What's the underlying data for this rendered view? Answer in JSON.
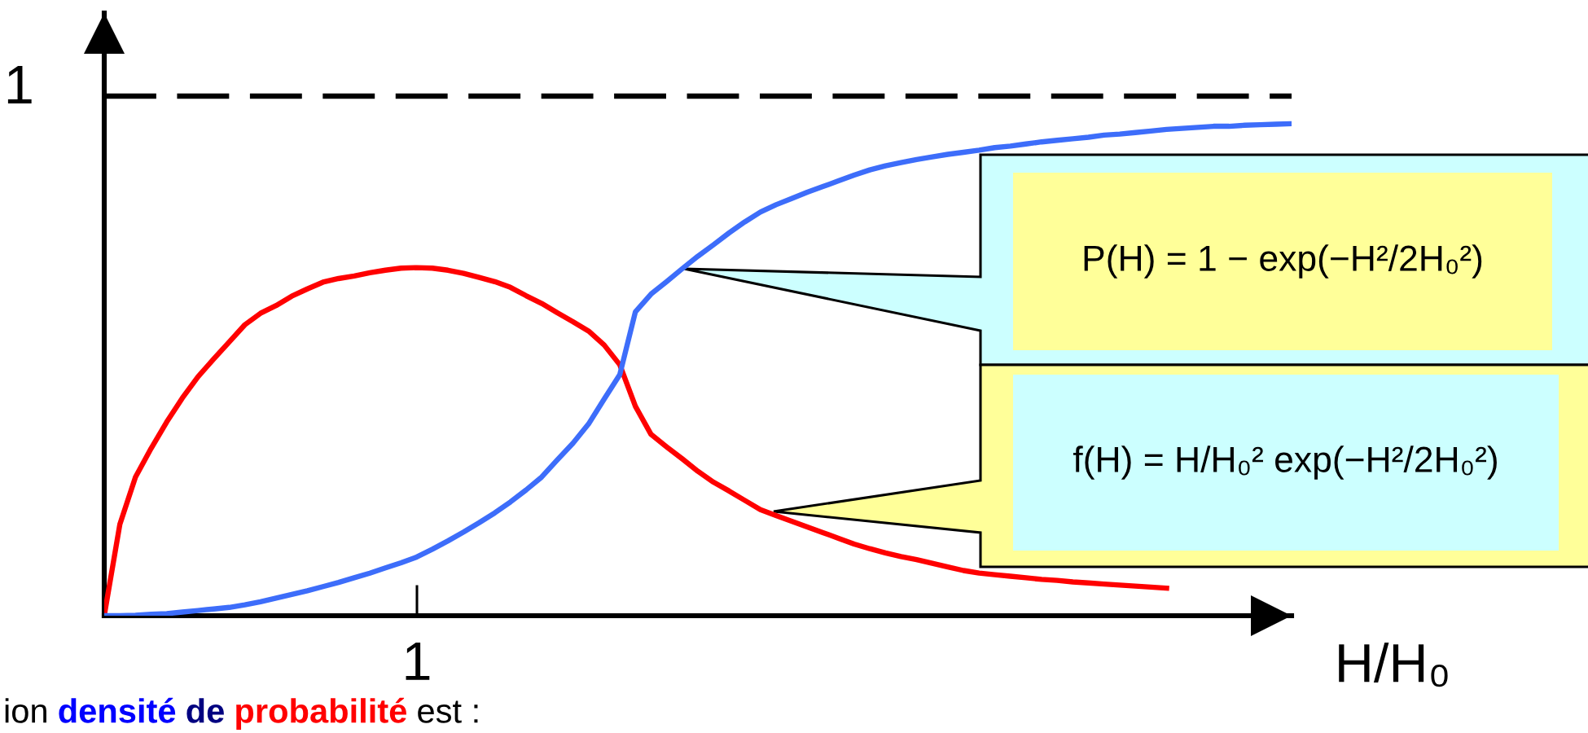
{
  "chart_data": {
    "type": "line",
    "xlabel": "H/H₀",
    "ylim": [
      0,
      1.16
    ],
    "categories": [
      null,
      null,
      null,
      null,
      null,
      null,
      null,
      null,
      null,
      null,
      null,
      null,
      null,
      null,
      null,
      null,
      null,
      null,
      null,
      null,
      null,
      null,
      null,
      null,
      null,
      null,
      null,
      null,
      null,
      null,
      null,
      null,
      null,
      null,
      null,
      null,
      null,
      null,
      null,
      null,
      null,
      null,
      null,
      null,
      null,
      null,
      null,
      null,
      null,
      null,
      null,
      null,
      null,
      null,
      null,
      null,
      null,
      null,
      null,
      null,
      null,
      null,
      null,
      null,
      null,
      null,
      null,
      null,
      null,
      null,
      null,
      null,
      null,
      null,
      null,
      null,
      null
    ],
    "series": [
      {
        "color": "#000000",
        "line_style": "dashed",
        "values": [
          1,
          1,
          1,
          1,
          1,
          1,
          1,
          1,
          1,
          1,
          1,
          1,
          1,
          1,
          1,
          1,
          1,
          1,
          1,
          1,
          1,
          1,
          1,
          1,
          1,
          1,
          1,
          1,
          1,
          1,
          1,
          1,
          1,
          1,
          1,
          1,
          1,
          1,
          1,
          1,
          1,
          1,
          1,
          1,
          1,
          1,
          1,
          1,
          1,
          1,
          1,
          1,
          1,
          1,
          1,
          1,
          1,
          1,
          1,
          1,
          1,
          1,
          1,
          1,
          1,
          1,
          1,
          1,
          1,
          1,
          1,
          1,
          1,
          1,
          1,
          1,
          1
        ],
        "value_labels": [
          "1",
          null,
          null,
          null,
          null,
          null,
          null,
          null,
          null,
          null,
          null,
          null,
          null,
          null,
          null,
          null,
          null,
          null,
          null,
          null,
          null,
          null,
          null,
          null,
          null,
          null,
          null,
          null,
          null,
          null,
          null,
          null,
          null,
          null,
          null,
          null,
          null,
          null,
          null,
          null,
          null,
          null,
          null,
          null,
          null,
          null,
          null,
          null,
          null,
          null,
          null,
          null,
          null,
          null,
          null,
          null,
          null,
          null,
          null,
          null,
          null,
          null,
          null,
          null,
          null,
          null,
          null,
          null,
          null,
          null,
          null,
          null,
          null,
          null,
          null,
          null,
          null
        ]
      },
      {
        "color": "#ff0000",
        "values": [
          0,
          0.176,
          0.267,
          0.322,
          0.373,
          0.419,
          0.46,
          0.494,
          0.527,
          0.56,
          0.582,
          0.597,
          0.615,
          0.629,
          0.642,
          0.649,
          0.654,
          0.66,
          0.665,
          0.669,
          0.67,
          0.669,
          0.665,
          0.659,
          0.651,
          0.643,
          0.632,
          0.616,
          0.601,
          0.583,
          0.566,
          0.548,
          0.521,
          0.483,
          0.403,
          0.349,
          0.325,
          0.302,
          0.278,
          0.257,
          0.24,
          0.222,
          0.204,
          0.193,
          0.182,
          0.171,
          0.16,
          0.149,
          0.138,
          0.129,
          0.121,
          0.114,
          0.108,
          0.101,
          0.094,
          0.087,
          0.082,
          0.079,
          0.076,
          0.073,
          0.07,
          0.068,
          0.065,
          0.063,
          0.061,
          0.059,
          0.057,
          0.055,
          0.053,
          null,
          null,
          null,
          null,
          null,
          null,
          null,
          null
        ]
      },
      {
        "color": "#3d6dfa",
        "values": [
          0,
          0,
          0.001,
          0.003,
          0.004,
          0.007,
          0.01,
          0.013,
          0.016,
          0.021,
          0.027,
          0.034,
          0.041,
          0.048,
          0.056,
          0.064,
          0.073,
          0.082,
          0.092,
          0.102,
          0.113,
          0.128,
          0.144,
          0.161,
          0.179,
          0.198,
          0.219,
          0.242,
          0.267,
          0.3,
          0.332,
          0.369,
          0.417,
          0.464,
          0.585,
          0.619,
          0.643,
          0.668,
          0.692,
          0.714,
          0.737,
          0.758,
          0.777,
          0.791,
          0.803,
          0.815,
          0.826,
          0.837,
          0.848,
          0.858,
          0.866,
          0.872,
          0.878,
          0.883,
          0.888,
          0.892,
          0.896,
          0.901,
          0.904,
          0.908,
          0.912,
          0.915,
          0.918,
          0.921,
          0.925,
          0.927,
          0.93,
          0.933,
          0.936,
          0.938,
          0.94,
          0.942,
          0.942,
          0.944,
          0.945,
          0.946,
          0.947
        ]
      }
    ],
    "annotations": [
      "P(H) = 1 − exp(−H²/2H₀²)",
      "f(H) = H/H₀² exp(−H²/2H₀²)",
      "1",
      "ion",
      "densité",
      "de",
      "probabilité",
      "est :"
    ]
  }
}
